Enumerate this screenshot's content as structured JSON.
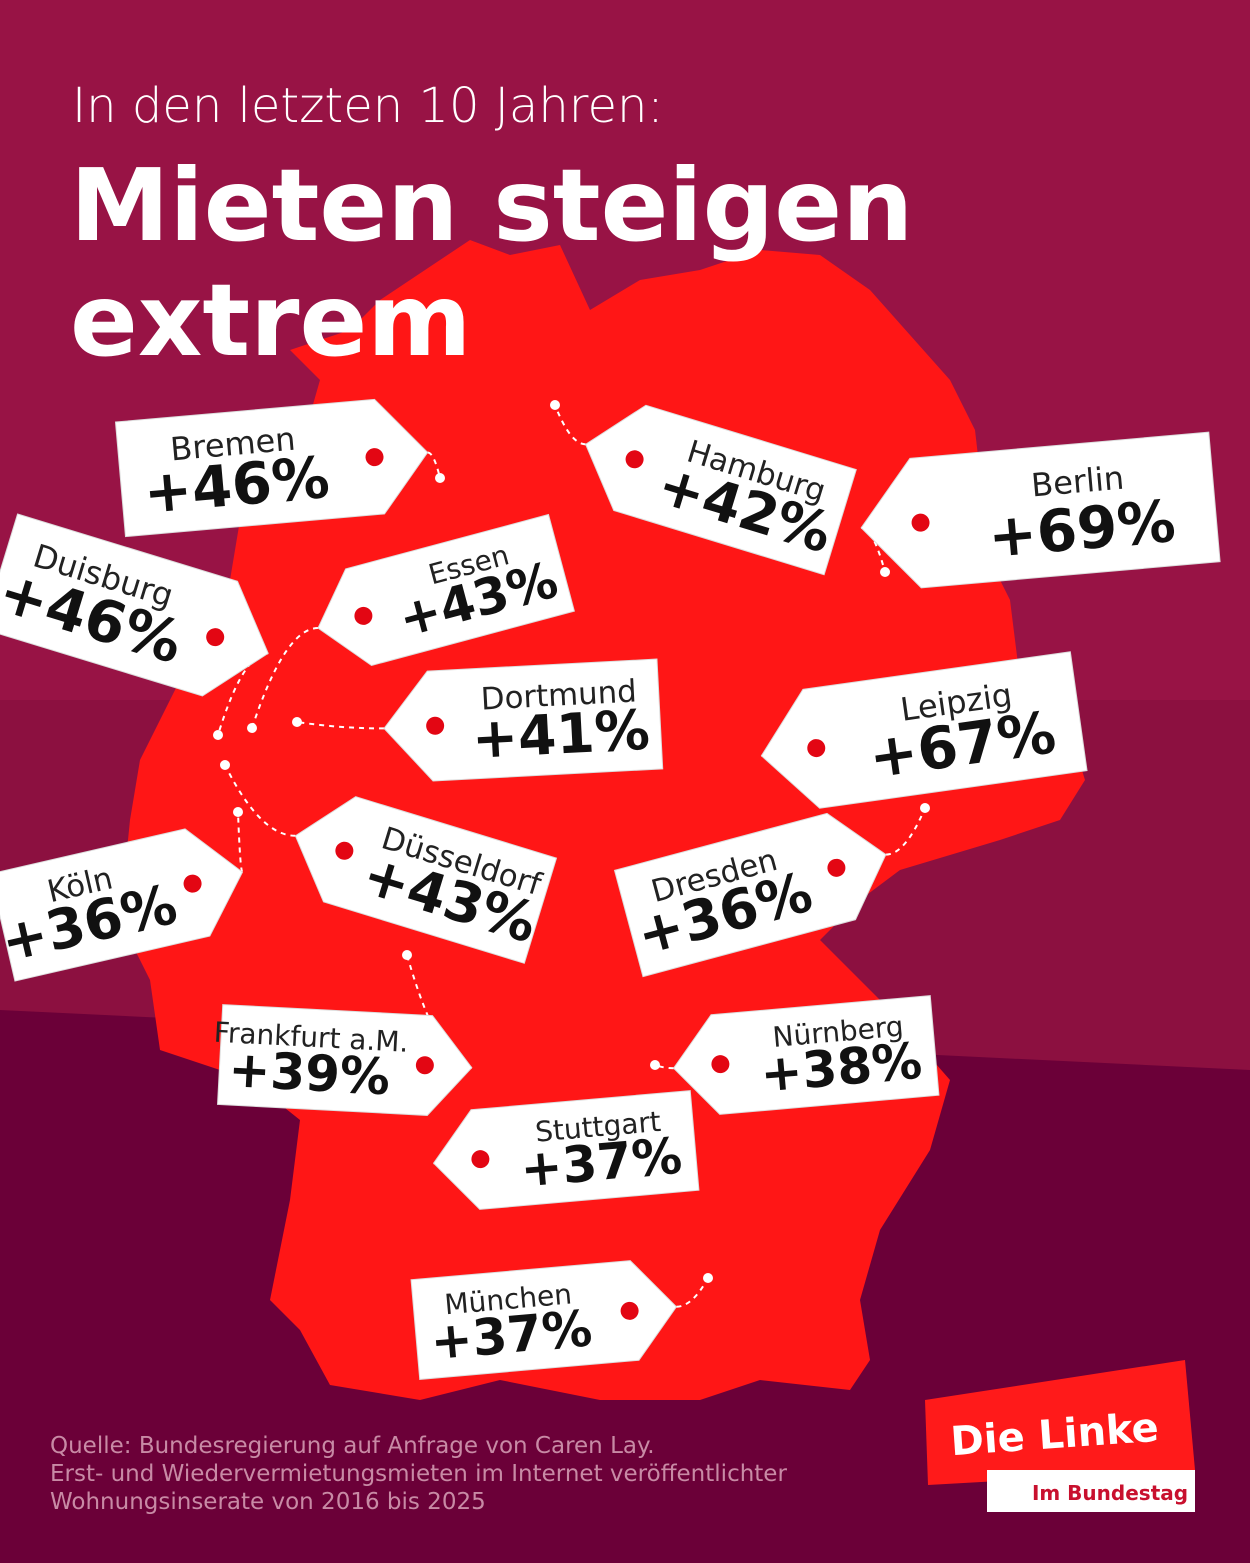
{
  "header": {
    "kicker": "In den letzten 10 Jahren:",
    "title": [
      "Mieten steigen",
      "extrem"
    ]
  },
  "tags": [
    {
      "city": "Bremen",
      "label": "+46%"
    },
    {
      "city": "Hamburg",
      "label": "+42%"
    },
    {
      "city": "Berlin",
      "label": "+69%"
    },
    {
      "city": "Duisburg",
      "label": "+46%"
    },
    {
      "city": "Essen",
      "label": "+43%"
    },
    {
      "city": "Dortmund",
      "label": "+41%"
    },
    {
      "city": "Leipzig",
      "label": "+67%"
    },
    {
      "city": "Köln",
      "label": "+36%"
    },
    {
      "city": "Düsseldorf",
      "label": "+43%"
    },
    {
      "city": "Dresden",
      "label": "+36%"
    },
    {
      "city": "Frankfurt a.M.",
      "label": "+39%"
    },
    {
      "city": "Nürnberg",
      "label": "+38%"
    },
    {
      "city": "Stuttgart",
      "label": "+37%"
    },
    {
      "city": "München",
      "label": "+37%"
    }
  ],
  "source": [
    "Quelle: Bundesregierung auf Anfrage von Caren Lay.",
    "Erst- und Wiedervermietungsmieten im Internet veröffentlichter",
    "Wohnungsinserate von 2016 bis 2025"
  ],
  "logo": {
    "name": "Die Linke",
    "sub": "Im Bundestag"
  }
}
